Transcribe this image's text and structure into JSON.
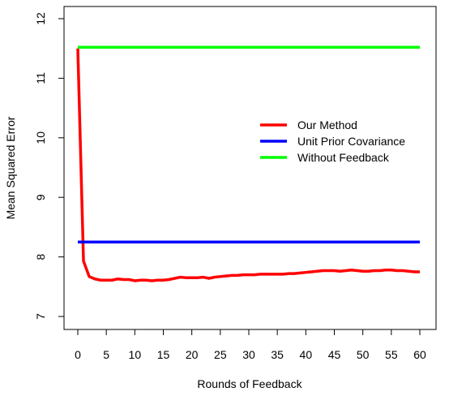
{
  "chart_data": {
    "type": "line",
    "xlabel": "Rounds of Feedback",
    "ylabel": "Mean Squared Error",
    "xlim": [
      0,
      60
    ],
    "ylim": [
      7,
      12
    ],
    "xticks": [
      "0",
      "5",
      "10",
      "15",
      "20",
      "25",
      "30",
      "35",
      "40",
      "45",
      "50",
      "55",
      "60"
    ],
    "yticks": [
      "7",
      "8",
      "9",
      "10",
      "11",
      "12"
    ],
    "legend_position": "right",
    "grid": false,
    "series": [
      {
        "name": "Our Method",
        "color": "#ff0000",
        "x": [
          0,
          1,
          2,
          3,
          4,
          5,
          6,
          7,
          8,
          9,
          10,
          11,
          12,
          13,
          14,
          15,
          16,
          17,
          18,
          19,
          20,
          21,
          22,
          23,
          24,
          25,
          26,
          27,
          28,
          29,
          30,
          31,
          32,
          33,
          34,
          35,
          36,
          37,
          38,
          39,
          40,
          41,
          42,
          43,
          44,
          45,
          46,
          47,
          48,
          49,
          50,
          51,
          52,
          53,
          54,
          55,
          56,
          57,
          58,
          59,
          60
        ],
        "y": [
          11.5,
          7.93,
          7.67,
          7.63,
          7.61,
          7.61,
          7.61,
          7.63,
          7.62,
          7.62,
          7.6,
          7.61,
          7.61,
          7.6,
          7.61,
          7.61,
          7.62,
          7.64,
          7.66,
          7.65,
          7.65,
          7.65,
          7.66,
          7.64,
          7.66,
          7.67,
          7.68,
          7.69,
          7.69,
          7.7,
          7.7,
          7.7,
          7.71,
          7.71,
          7.71,
          7.71,
          7.71,
          7.72,
          7.72,
          7.73,
          7.74,
          7.75,
          7.76,
          7.77,
          7.77,
          7.77,
          7.76,
          7.77,
          7.78,
          7.77,
          7.76,
          7.76,
          7.77,
          7.77,
          7.78,
          7.78,
          7.77,
          7.77,
          7.76,
          7.75,
          7.75
        ]
      },
      {
        "name": "Unit Prior Covariance",
        "color": "#0000ff",
        "x": [
          0,
          60
        ],
        "y": [
          8.25,
          8.25
        ]
      },
      {
        "name": "Without Feedback",
        "color": "#00ff00",
        "x": [
          0,
          60
        ],
        "y": [
          11.52,
          11.52
        ]
      }
    ]
  }
}
